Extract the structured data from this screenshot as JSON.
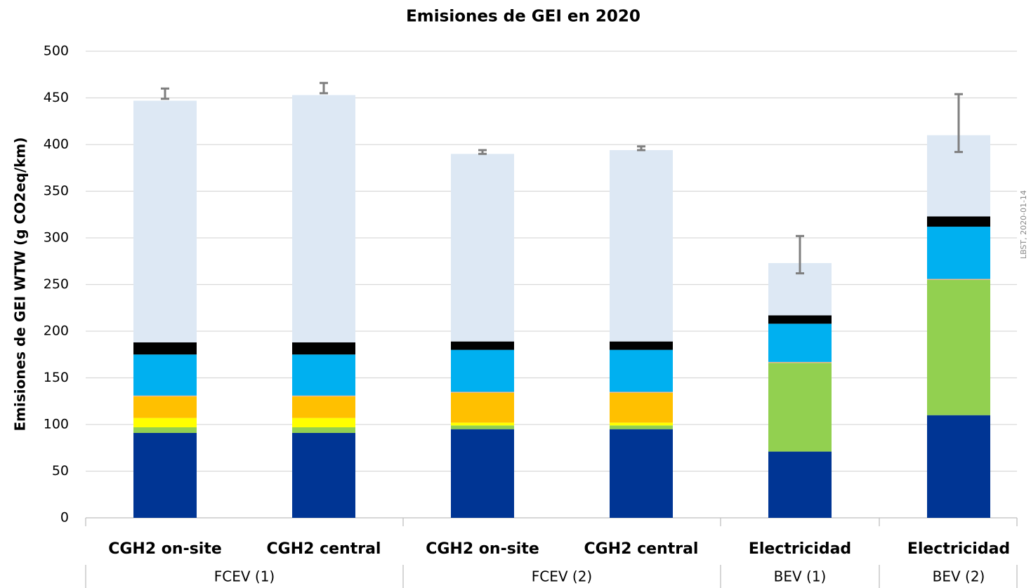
{
  "chart_data": {
    "type": "stacked_bar",
    "title": "Emisiones de GEI en 2020",
    "y_label": "Emisiones de GEI WTW (g CO2eq/km)",
    "annotation": "LBST, 2020-01-14",
    "categories": [
      "CGH2 on-site",
      "CGH2 central",
      "CGH2 on-site",
      "CGH2 central",
      "Electricidad",
      "Electricidad"
    ],
    "groups": [
      {
        "label": "FCEV (1)",
        "size": 2
      },
      {
        "label": "FCEV (2)",
        "size": 2
      },
      {
        "label": "BEV (1)",
        "size": 1
      },
      {
        "label": "BEV (2)",
        "size": 1
      }
    ],
    "series": [
      {
        "color": "#003594",
        "values": [
          91,
          91,
          95,
          95,
          71,
          110
        ]
      },
      {
        "color": "#92d050",
        "values": [
          6,
          6,
          4,
          4,
          95,
          145
        ]
      },
      {
        "color": "#ffff00",
        "values": [
          10,
          10,
          3,
          3,
          0,
          0
        ]
      },
      {
        "color": "#ffc000",
        "values": [
          23,
          23,
          32,
          32,
          0,
          0
        ]
      },
      {
        "color": "#f4b183",
        "values": [
          1,
          1,
          1,
          1,
          1,
          1
        ]
      },
      {
        "color": "#00b0f0",
        "values": [
          44,
          44,
          45,
          45,
          41,
          56
        ]
      },
      {
        "color": "#000000",
        "values": [
          13,
          13,
          9,
          9,
          9,
          11
        ]
      },
      {
        "color": "#dde8f4",
        "values": [
          259,
          265,
          201,
          205,
          56,
          87
        ]
      }
    ],
    "error_low": [
      449,
      455,
      390,
      394,
      262,
      392
    ],
    "error_high": [
      460,
      466,
      394,
      398,
      302,
      454
    ],
    "error_color": "#7f7f7f",
    "ylim": [
      0,
      500
    ],
    "yticks": [
      0,
      50,
      100,
      150,
      200,
      250,
      300,
      350,
      400,
      450,
      500
    ],
    "grid": true
  }
}
